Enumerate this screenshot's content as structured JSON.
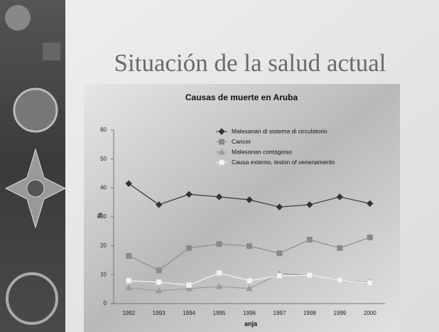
{
  "slide_title": "Situación de la salud actual",
  "chart_data": {
    "type": "line",
    "title": "Causas de muerte en Aruba",
    "x_label": "anja",
    "y_label": "%",
    "categories": [
      "1992",
      "1993",
      "1994",
      "1995",
      "1996",
      "1997",
      "1998",
      "1999",
      "2000"
    ],
    "series": [
      {
        "name": "Malesanan di sistema di circulatorio",
        "color": "#333333",
        "marker": "diamond",
        "values": [
          41.5,
          34.2,
          37.8,
          36.9,
          35.9,
          33.4,
          34.2,
          36.9,
          34.6
        ]
      },
      {
        "name": "Cancer",
        "color": "#8a8a8a",
        "marker": "square",
        "values": [
          16.5,
          11.5,
          19.2,
          20.6,
          19.9,
          17.4,
          22.1,
          19.2,
          22.9
        ]
      },
      {
        "name": "Malesanan contagioso",
        "color": "#9a9a9a",
        "marker": "triangle",
        "values": [
          5.4,
          4.4,
          5.2,
          5.9,
          5.2,
          10.3,
          9.8,
          8.1,
          7.4
        ]
      },
      {
        "name": "Causa externo, lesion of venenamento",
        "color": "#f4f4f4",
        "marker": "square",
        "values": [
          7.9,
          7.4,
          6.4,
          10.6,
          7.9,
          9.6,
          9.8,
          8.1,
          7.1
        ]
      }
    ],
    "ylim": [
      0,
      60
    ],
    "yticks": [
      0,
      10,
      20,
      30,
      40,
      50,
      60
    ],
    "grid": false,
    "legend": "top-right"
  }
}
